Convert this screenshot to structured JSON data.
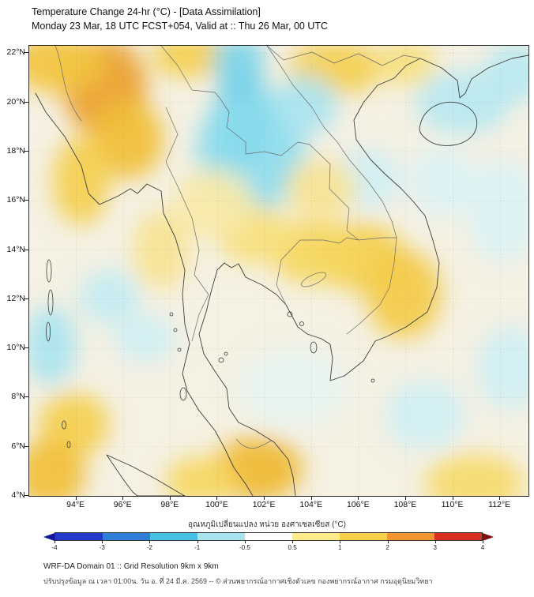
{
  "header": {
    "title": "Temperature Change 24-hr (°C) - [Data Assimilation]",
    "subtitle": "Monday 23 Mar, 18 UTC FCST+054, Valid at :: Thu 26 Mar, 00 UTC"
  },
  "map": {
    "lat_ticks": [
      "22°N",
      "20°N",
      "18°N",
      "16°N",
      "14°N",
      "12°N",
      "10°N",
      "8°N",
      "6°N",
      "4°N"
    ],
    "lon_ticks": [
      "94°E",
      "96°E",
      "98°E",
      "100°E",
      "102°E",
      "104°E",
      "106°E",
      "108°E",
      "110°E",
      "112°E"
    ]
  },
  "colorbar": {
    "label": "อุณหภูมิเปลี่ยนแปลง หน่วย องศาเซลเซียส (°C)",
    "tick_labels": [
      "-4",
      "-3",
      "-2",
      "-1",
      "-0.5",
      "0.5",
      "1",
      "2",
      "3",
      "4"
    ],
    "segment_colors": [
      "#2238c8",
      "#2f7fd9",
      "#45c2e6",
      "#a8e4f0",
      "#ffffff",
      "#fdeb8a",
      "#f8cf4a",
      "#f0952f",
      "#d92f20"
    ],
    "arrow_left_color": "#16169c",
    "arrow_right_color": "#7e0e0e"
  },
  "footer": {
    "line1": "WRF-DA Domain 01 :: Grid Resolution 9km x 9km",
    "line2": "ปรับปรุงข้อมูล ณ เวลา 01:00น. วัน อ. ที่ 24 มี.ค. 2569 -- © ส่วนพยากรณ์อากาศเชิงตัวเลข กองพยากรณ์อากาศ กรมอุตุนิยมวิทยา"
  },
  "chart_data": {
    "type": "heatmap",
    "title": "Temperature Change 24-hr (°C) - [Data Assimilation]",
    "xlabel": "",
    "ylabel": "",
    "x_axis": {
      "ticks": [
        94,
        96,
        98,
        100,
        102,
        104,
        106,
        108,
        110,
        112
      ],
      "range": [
        92.0,
        113.2
      ],
      "unit": "°E"
    },
    "y_axis": {
      "ticks": [
        22,
        20,
        18,
        16,
        14,
        12,
        10,
        8,
        6,
        4
      ],
      "range": [
        4.0,
        22.3
      ],
      "unit": "°N"
    },
    "colorbar": {
      "units": "°C",
      "ticks": [
        -4,
        -3,
        -2,
        -1,
        -0.5,
        0.5,
        1,
        2,
        3,
        4
      ]
    },
    "anomaly_centers": [
      {
        "lon": 95.2,
        "lat": 20.6,
        "dT": 2.0,
        "rx": 1.8,
        "ry": 2.0
      },
      {
        "lon": 96.2,
        "lat": 18.5,
        "dT": 1.5,
        "rx": 1.5,
        "ry": 1.6
      },
      {
        "lon": 93.2,
        "lat": 21.6,
        "dT": 1.4,
        "rx": 2.0,
        "ry": 1.2
      },
      {
        "lon": 94.2,
        "lat": 16.8,
        "dT": 1.2,
        "rx": 1.2,
        "ry": 1.8
      },
      {
        "lon": 98.8,
        "lat": 21.9,
        "dT": 1.2,
        "rx": 1.6,
        "ry": 0.9
      },
      {
        "lon": 105.0,
        "lat": 21.4,
        "dT": 1.2,
        "rx": 2.0,
        "ry": 1.1
      },
      {
        "lon": 108.0,
        "lat": 21.6,
        "dT": 0.8,
        "rx": 1.3,
        "ry": 0.9
      },
      {
        "lon": 101.1,
        "lat": 19.2,
        "dT": -2.2,
        "rx": 1.3,
        "ry": 1.9
      },
      {
        "lon": 101.4,
        "lat": 18.0,
        "dT": -1.0,
        "rx": 2.3,
        "ry": 2.5
      },
      {
        "lon": 100.9,
        "lat": 21.6,
        "dT": -1.2,
        "rx": 1.1,
        "ry": 1.1
      },
      {
        "lon": 103.7,
        "lat": 19.9,
        "dT": -0.8,
        "rx": 1.4,
        "ry": 1.2
      },
      {
        "lon": 110.4,
        "lat": 20.0,
        "dT": -0.7,
        "rx": 2.0,
        "ry": 1.3
      },
      {
        "lon": 112.6,
        "lat": 21.2,
        "dT": -0.7,
        "rx": 1.3,
        "ry": 1.2
      },
      {
        "lon": 106.3,
        "lat": 16.9,
        "dT": -0.5,
        "rx": 1.5,
        "ry": 1.2
      },
      {
        "lon": 109.5,
        "lat": 16.8,
        "dT": -0.4,
        "rx": 1.4,
        "ry": 1.4
      },
      {
        "lon": 106.1,
        "lat": 13.7,
        "dT": 1.2,
        "rx": 1.9,
        "ry": 1.4
      },
      {
        "lon": 107.9,
        "lat": 12.2,
        "dT": 1.3,
        "rx": 1.6,
        "ry": 1.8
      },
      {
        "lon": 104.1,
        "lat": 13.9,
        "dT": 1.0,
        "rx": 1.9,
        "ry": 1.3
      },
      {
        "lon": 104.4,
        "lat": 16.5,
        "dT": 0.7,
        "rx": 1.5,
        "ry": 1.2
      },
      {
        "lon": 101.6,
        "lat": 14.6,
        "dT": 0.8,
        "rx": 1.6,
        "ry": 1.2
      },
      {
        "lon": 99.8,
        "lat": 15.9,
        "dT": 0.6,
        "rx": 1.7,
        "ry": 1.4
      },
      {
        "lon": 97.6,
        "lat": 14.0,
        "dT": 0.7,
        "rx": 1.2,
        "ry": 1.6
      },
      {
        "lon": 95.4,
        "lat": 12.1,
        "dT": -0.6,
        "rx": 1.3,
        "ry": 1.1
      },
      {
        "lon": 92.9,
        "lat": 10.1,
        "dT": -0.8,
        "rx": 1.1,
        "ry": 1.6
      },
      {
        "lon": 96.9,
        "lat": 10.4,
        "dT": -0.5,
        "rx": 1.3,
        "ry": 1.0
      },
      {
        "lon": 93.9,
        "lat": 6.9,
        "dT": 1.2,
        "rx": 1.5,
        "ry": 1.3
      },
      {
        "lon": 92.9,
        "lat": 4.9,
        "dT": 1.5,
        "rx": 1.5,
        "ry": 1.4
      },
      {
        "lon": 101.7,
        "lat": 5.1,
        "dT": 1.6,
        "rx": 1.9,
        "ry": 1.3
      },
      {
        "lon": 99.3,
        "lat": 4.6,
        "dT": 1.0,
        "rx": 1.5,
        "ry": 1.0
      },
      {
        "lon": 110.9,
        "lat": 4.5,
        "dT": 0.9,
        "rx": 2.1,
        "ry": 1.2
      },
      {
        "lon": 108.8,
        "lat": 7.3,
        "dT": -0.5,
        "rx": 1.7,
        "ry": 1.4
      },
      {
        "lon": 112.4,
        "lat": 9.2,
        "dT": -0.5,
        "rx": 1.4,
        "ry": 1.7
      },
      {
        "lon": 103.2,
        "lat": 8.4,
        "dT": -0.3,
        "rx": 2.3,
        "ry": 1.6
      },
      {
        "lon": 112.1,
        "lat": 15.6,
        "dT": -0.4,
        "rx": 1.5,
        "ry": 2.1
      }
    ]
  }
}
